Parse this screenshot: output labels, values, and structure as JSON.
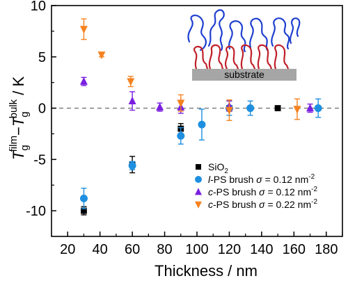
{
  "chart_data": {
    "type": "scatter",
    "xlabel": "Thickness / nm",
    "ylabel_parts": {
      "T1": "T",
      "sub1": "g",
      "sup1": "film",
      "minus": "−",
      "T2": "T",
      "sub2": "g",
      "sup2": "bulk",
      "unit": " / K"
    },
    "xlim": [
      10,
      190
    ],
    "ylim": [
      -12.5,
      10
    ],
    "xticks": [
      20,
      40,
      60,
      80,
      100,
      120,
      140,
      160,
      180
    ],
    "yticks": [
      -10,
      -5,
      0,
      5,
      10
    ],
    "reference_line_y": 0,
    "legend_position": "lower-right",
    "inset": {
      "substrate_label": "substrate"
    },
    "series": [
      {
        "name": "SiO",
        "name_sub": "2",
        "name_rest": "",
        "marker": "square",
        "color": "#000000",
        "points": [
          {
            "x": 30,
            "y": -10.0,
            "err": 0.4
          },
          {
            "x": 60,
            "y": -5.5,
            "err": 0.8
          },
          {
            "x": 90,
            "y": -2.0,
            "err": 0.5
          },
          {
            "x": 120,
            "y": 0.0,
            "err": 0.2
          },
          {
            "x": 150,
            "y": 0.0,
            "err": 0.1
          }
        ]
      },
      {
        "name": "l-PS brush",
        "name_italic_prefix": "l",
        "name_plain": "-PS brush",
        "sigma": "σ = 0.12 nm",
        "sigma_sup": "-2",
        "marker": "circle",
        "color": "#1e8fe0",
        "points": [
          {
            "x": 30,
            "y": -8.8,
            "err": 1.0
          },
          {
            "x": 60,
            "y": -5.6,
            "err": 0.4
          },
          {
            "x": 90,
            "y": -2.7,
            "err": 0.8
          },
          {
            "x": 103,
            "y": -1.6,
            "err": 1.5
          },
          {
            "x": 120,
            "y": 0.0,
            "err": 0.7
          },
          {
            "x": 133,
            "y": 0.0,
            "err": 0.7
          },
          {
            "x": 175,
            "y": 0.0,
            "err": 0.9
          }
        ]
      },
      {
        "name": "c-PS brush",
        "name_italic_prefix": "c",
        "name_plain": "-PS brush",
        "sigma": "σ = 0.12 nm",
        "sigma_sup": "-2",
        "marker": "triangle-up",
        "color": "#7a1fe0",
        "points": [
          {
            "x": 30,
            "y": 2.6,
            "err": 0.4
          },
          {
            "x": 60,
            "y": 0.7,
            "err": 0.9
          },
          {
            "x": 77,
            "y": 0.1,
            "err": 0.4
          },
          {
            "x": 90,
            "y": 0.1,
            "err": 0.6
          },
          {
            "x": 120,
            "y": 0.2,
            "err": 0.5
          },
          {
            "x": 170,
            "y": 0.0,
            "err": 0.4
          }
        ]
      },
      {
        "name": "c-PS brush",
        "name_italic_prefix": "c",
        "name_plain": "-PS brush",
        "sigma": "σ = 0.22 nm",
        "sigma_sup": "-2",
        "marker": "triangle-down",
        "color": "#f5821f",
        "points": [
          {
            "x": 30,
            "y": 7.7,
            "err": 1.0
          },
          {
            "x": 41,
            "y": 5.2,
            "err": 0.2
          },
          {
            "x": 59,
            "y": 2.6,
            "err": 0.5
          },
          {
            "x": 90,
            "y": 0.5,
            "err": 0.8
          },
          {
            "x": 120,
            "y": -0.2,
            "err": 1.0
          },
          {
            "x": 162,
            "y": -0.1,
            "err": 1.0
          }
        ]
      }
    ]
  }
}
